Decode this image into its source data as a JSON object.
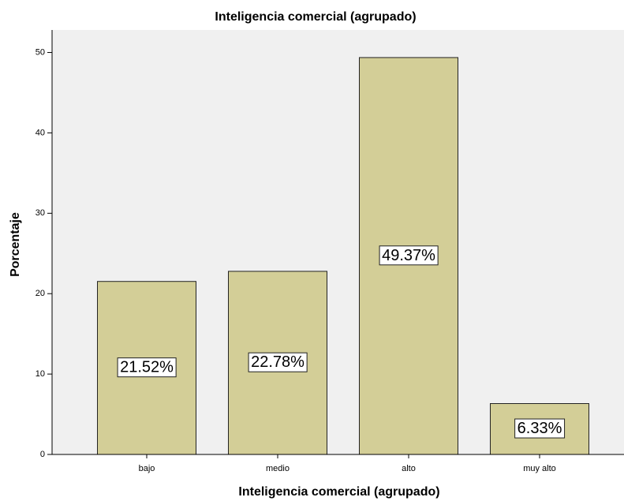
{
  "chart_data": {
    "type": "bar",
    "title": "Inteligencia comercial (agrupado)",
    "x_label": "Inteligencia comercial (agrupado)",
    "y_label": "Porcentaje",
    "categories": [
      "bajo",
      "medio",
      "alto",
      "muy alto"
    ],
    "values": [
      21.52,
      22.78,
      49.37,
      6.33
    ],
    "value_labels": [
      "21.52%",
      "22.78%",
      "49.37%",
      "6.33%"
    ],
    "color": "#d3ce97",
    "ylim": [
      0,
      52.8
    ],
    "yticks": [
      0,
      10,
      20,
      30,
      40,
      50
    ],
    "grid": false
  }
}
